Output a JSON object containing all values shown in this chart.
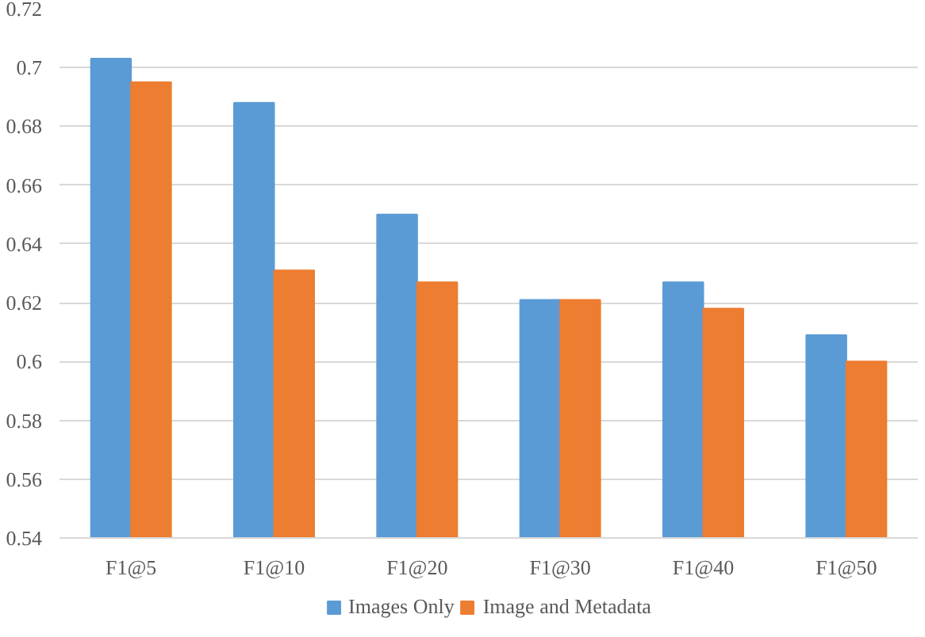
{
  "chart_data": {
    "type": "bar",
    "categories": [
      "F1@5",
      "F1@10",
      "F1@20",
      "F1@30",
      "F1@40",
      "F1@50"
    ],
    "series": [
      {
        "name": "Images Only",
        "color": "#5b9bd5",
        "values": [
          0.703,
          0.688,
          0.65,
          0.621,
          0.627,
          0.609
        ]
      },
      {
        "name": "Image and Metadata",
        "color": "#ed7d31",
        "values": [
          0.695,
          0.631,
          0.627,
          0.621,
          0.618,
          0.6
        ]
      }
    ],
    "ylim": [
      0.54,
      0.72
    ],
    "yticks": [
      0.54,
      0.56,
      0.58,
      0.6,
      0.62,
      0.64,
      0.66,
      0.68,
      0.7,
      0.72
    ],
    "grid": "y",
    "legend": "bottom"
  }
}
